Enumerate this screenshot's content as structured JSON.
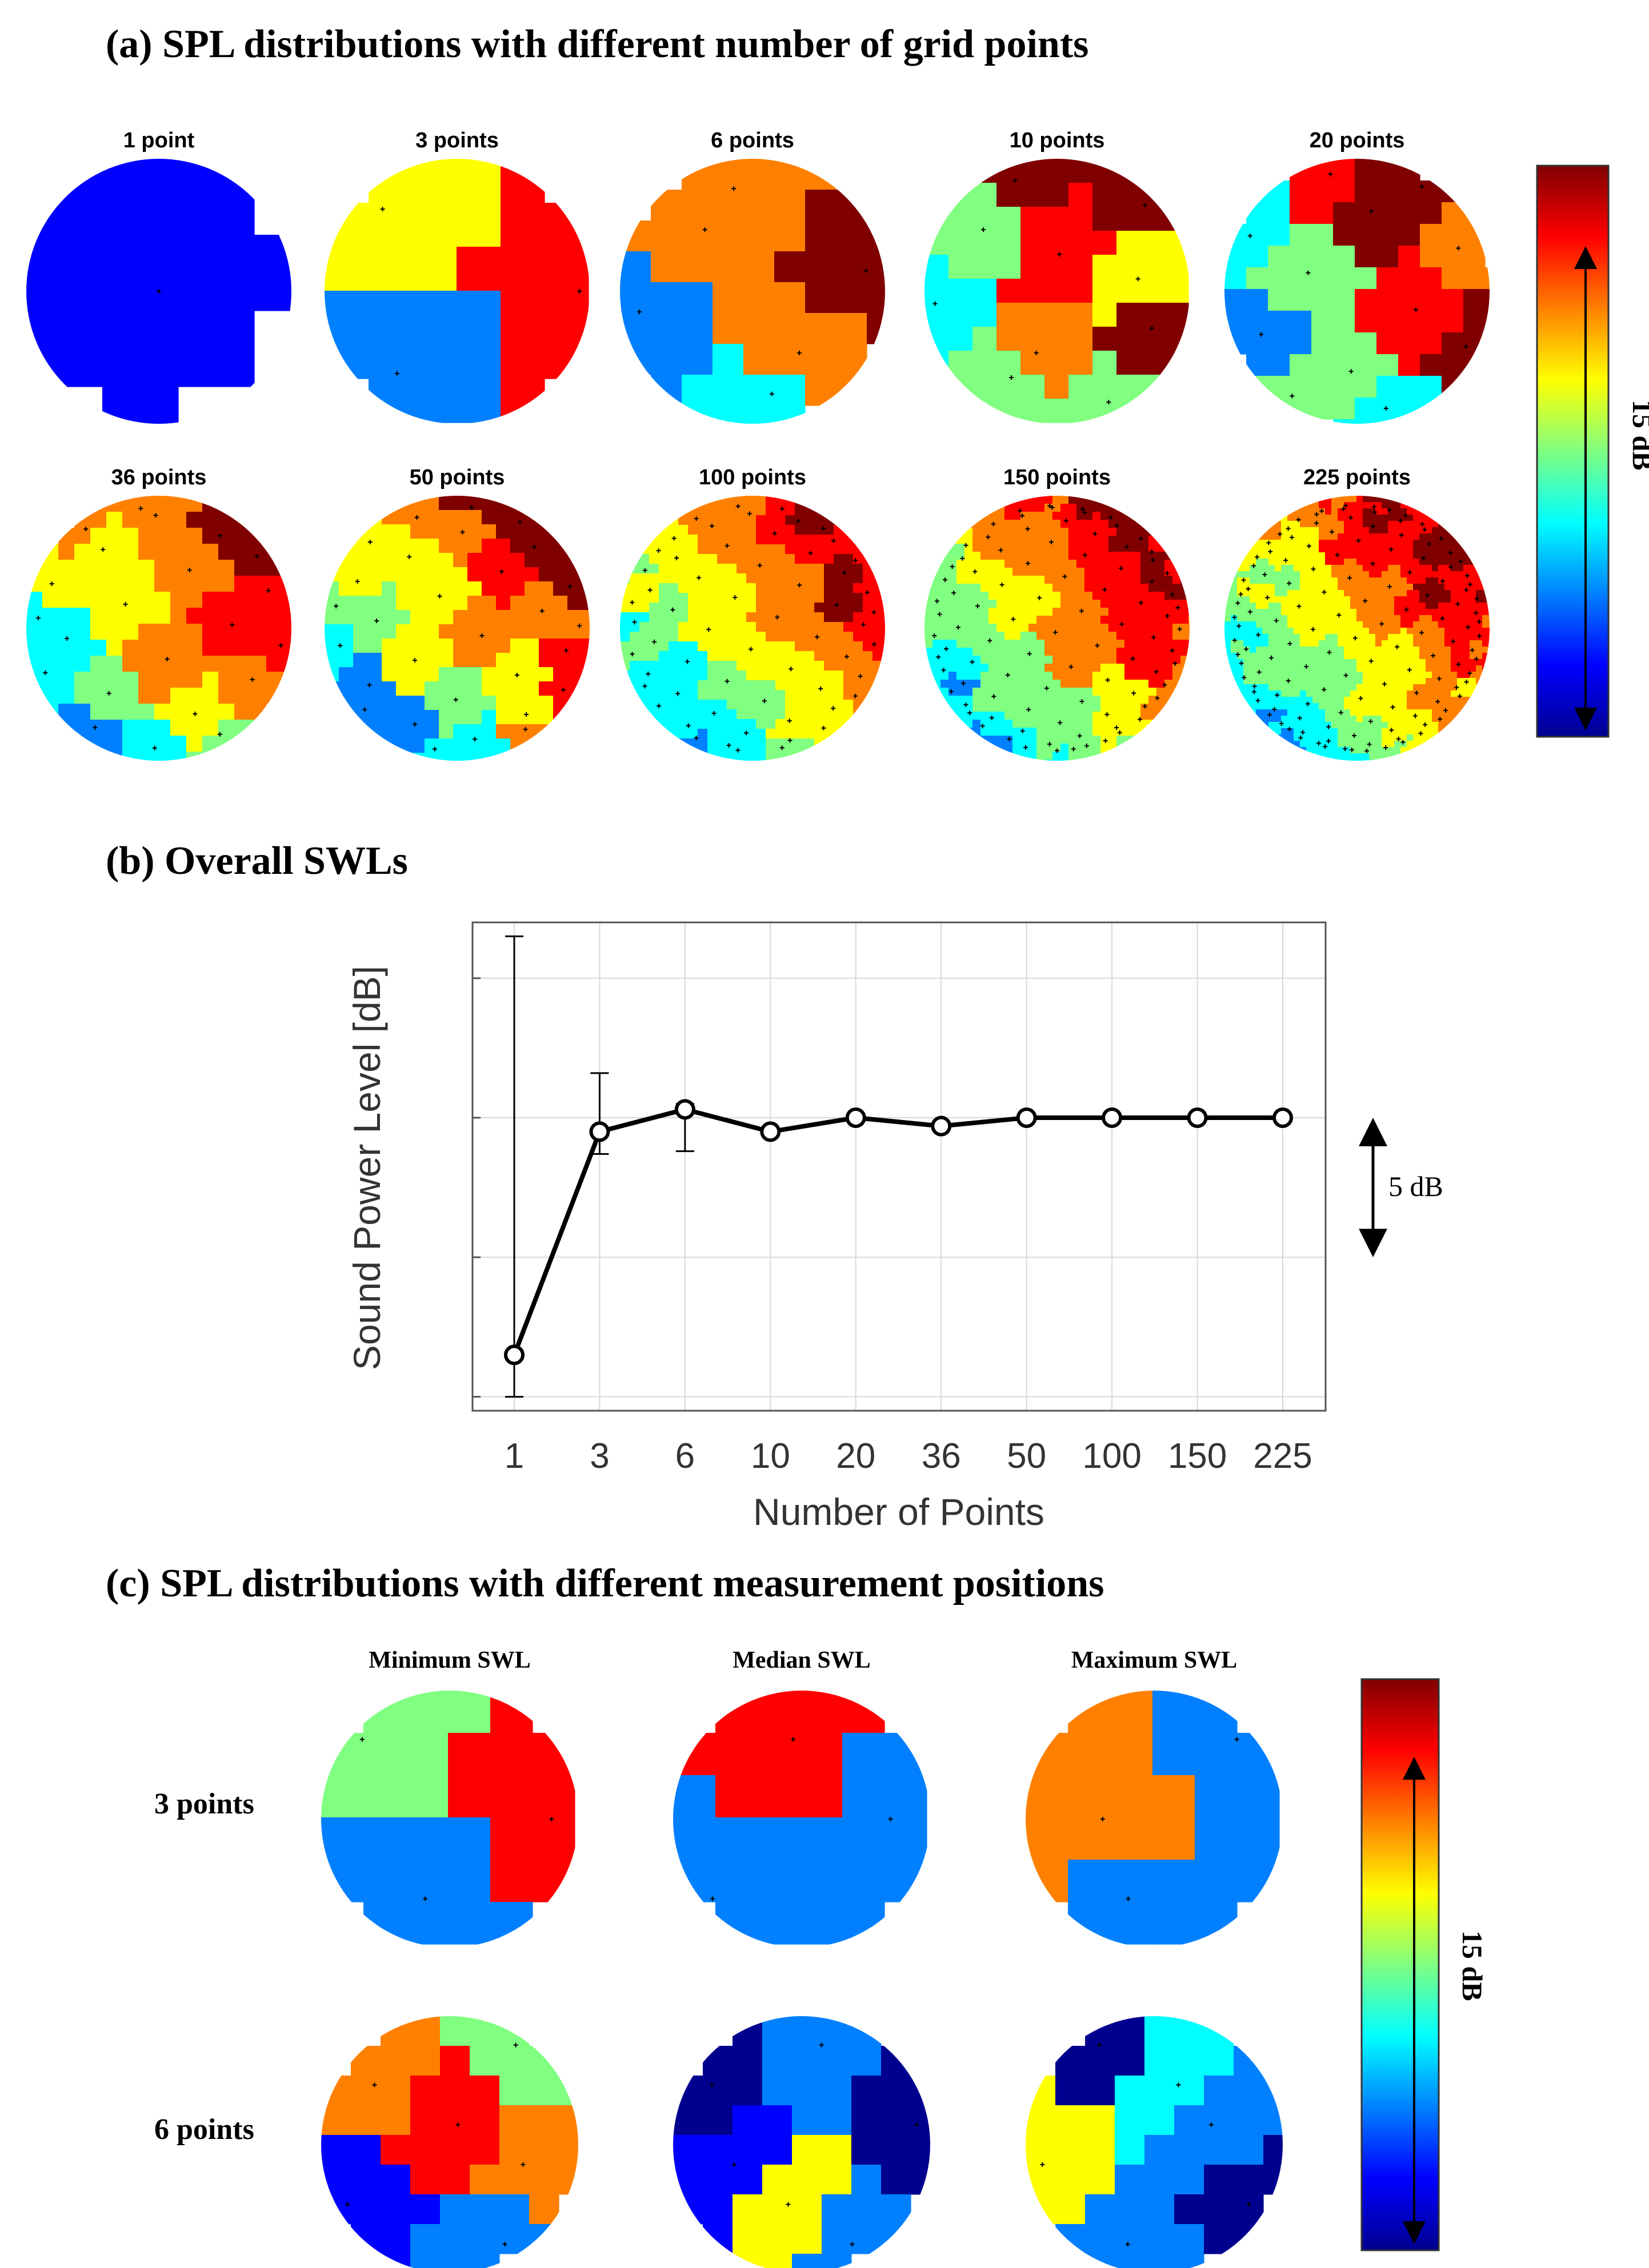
{
  "figure": {
    "panel_a": {
      "title": "(a) SPL distributions with different number of grid points",
      "spheres": [
        {
          "label": "1 point",
          "points": 1
        },
        {
          "label": "3 points",
          "points": 3
        },
        {
          "label": "6 points",
          "points": 6
        },
        {
          "label": "10 points",
          "points": 10
        },
        {
          "label": "20 points",
          "points": 20
        },
        {
          "label": "36 points",
          "points": 36
        },
        {
          "label": "50 points",
          "points": 50
        },
        {
          "label": "100 points",
          "points": 100
        },
        {
          "label": "150 points",
          "points": 150
        },
        {
          "label": "225 points",
          "points": 225
        }
      ],
      "colorbar_label": "15 dB"
    },
    "panel_b": {
      "title": "(b) Overall SWLs"
    },
    "panel_c": {
      "title": "(c) SPL distributions with different measurement positions",
      "columns": [
        "Minimum SWL",
        "Median SWL",
        "Maximum SWL"
      ],
      "rows": [
        "3 points",
        "6 points"
      ],
      "colorbar_label": "15 dB"
    }
  },
  "colors": {
    "jet": [
      "#00008f",
      "#0000ff",
      "#0080ff",
      "#00ffff",
      "#80ff80",
      "#ffff00",
      "#ff8000",
      "#ff0000",
      "#800000"
    ],
    "line": "#000000",
    "grid": "#d9d9d9"
  },
  "chart_data": {
    "type": "line",
    "title": "",
    "xlabel": "Number of Points",
    "ylabel": "Sound Power Level [dB]",
    "categories": [
      "1",
      "3",
      "6",
      "10",
      "20",
      "36",
      "50",
      "100",
      "150",
      "225"
    ],
    "values": [
      -8.5,
      -0.5,
      0.3,
      -0.5,
      0.0,
      -0.3,
      0.0,
      0.0,
      0.0,
      0.0
    ],
    "error_low": [
      -10.0,
      -1.3,
      -1.2,
      null,
      null,
      null,
      null,
      null,
      null,
      null
    ],
    "error_high": [
      6.5,
      1.6,
      0.5,
      null,
      null,
      null,
      null,
      null,
      null,
      null
    ],
    "ylim": [
      -10.5,
      7.0
    ],
    "yticks": [
      -10,
      -5,
      0,
      5
    ],
    "grid": true,
    "scale_annotation": "5 dB",
    "scale_range": [
      -5,
      0
    ]
  }
}
